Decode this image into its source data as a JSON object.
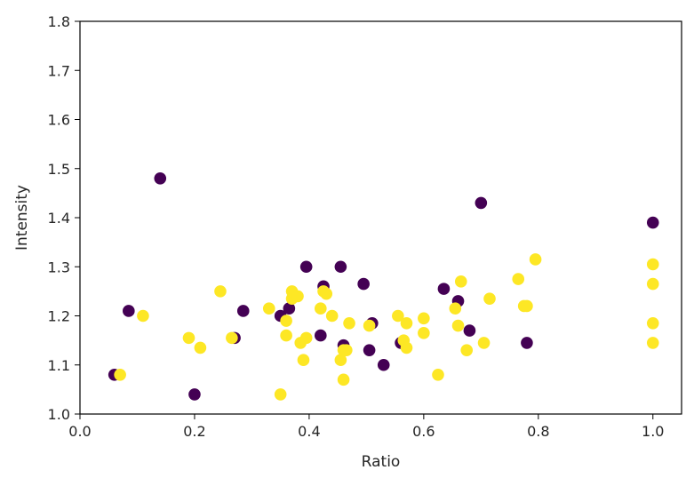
{
  "chart_data": {
    "type": "scatter",
    "xlabel": "Ratio",
    "ylabel": "Intensity",
    "xlim": [
      0.0,
      1.05
    ],
    "ylim": [
      1.0,
      1.8
    ],
    "x_ticks": [
      "0.0",
      "0.2",
      "0.4",
      "0.6",
      "0.8",
      "1.0"
    ],
    "x_tick_values": [
      0.0,
      0.2,
      0.4,
      0.6,
      0.8,
      1.0
    ],
    "y_ticks": [
      "1.0",
      "1.1",
      "1.2",
      "1.3",
      "1.4",
      "1.5",
      "1.6",
      "1.7",
      "1.8"
    ],
    "y_tick_values": [
      1.0,
      1.1,
      1.2,
      1.3,
      1.4,
      1.5,
      1.6,
      1.7,
      1.8
    ],
    "grid": false,
    "colors": {
      "purple": "#440154",
      "yellow": "#fde725"
    },
    "series": [
      {
        "color": "purple",
        "x": [
          0.06,
          0.085,
          0.14,
          0.2,
          0.27,
          0.285,
          0.35,
          0.365,
          0.395,
          0.42,
          0.425,
          0.455,
          0.46,
          0.495,
          0.505,
          0.51,
          0.53,
          0.56,
          0.635,
          0.66,
          0.68,
          0.7,
          0.78,
          1.0
        ],
        "y": [
          1.08,
          1.21,
          1.48,
          1.04,
          1.155,
          1.21,
          1.2,
          1.215,
          1.3,
          1.16,
          1.26,
          1.3,
          1.14,
          1.265,
          1.13,
          1.185,
          1.1,
          1.145,
          1.255,
          1.23,
          1.17,
          1.43,
          1.145,
          1.39
        ]
      },
      {
        "color": "yellow",
        "x": [
          0.07,
          0.11,
          0.19,
          0.21,
          0.245,
          0.265,
          0.33,
          0.35,
          0.36,
          0.36,
          0.37,
          0.37,
          0.38,
          0.385,
          0.39,
          0.395,
          0.42,
          0.425,
          0.43,
          0.44,
          0.455,
          0.46,
          0.46,
          0.465,
          0.47,
          0.505,
          0.555,
          0.565,
          0.57,
          0.57,
          0.6,
          0.6,
          0.625,
          0.655,
          0.66,
          0.665,
          0.675,
          0.705,
          0.715,
          0.765,
          0.775,
          0.78,
          0.795,
          1.0,
          1.0,
          1.0,
          1.0
        ],
        "y": [
          1.08,
          1.2,
          1.155,
          1.135,
          1.25,
          1.155,
          1.215,
          1.04,
          1.19,
          1.16,
          1.235,
          1.25,
          1.24,
          1.145,
          1.11,
          1.155,
          1.215,
          1.25,
          1.245,
          1.2,
          1.11,
          1.07,
          1.13,
          1.13,
          1.185,
          1.18,
          1.2,
          1.15,
          1.135,
          1.185,
          1.195,
          1.165,
          1.08,
          1.215,
          1.18,
          1.27,
          1.13,
          1.145,
          1.235,
          1.275,
          1.22,
          1.22,
          1.315,
          1.305,
          1.265,
          1.185,
          1.145
        ]
      }
    ]
  }
}
